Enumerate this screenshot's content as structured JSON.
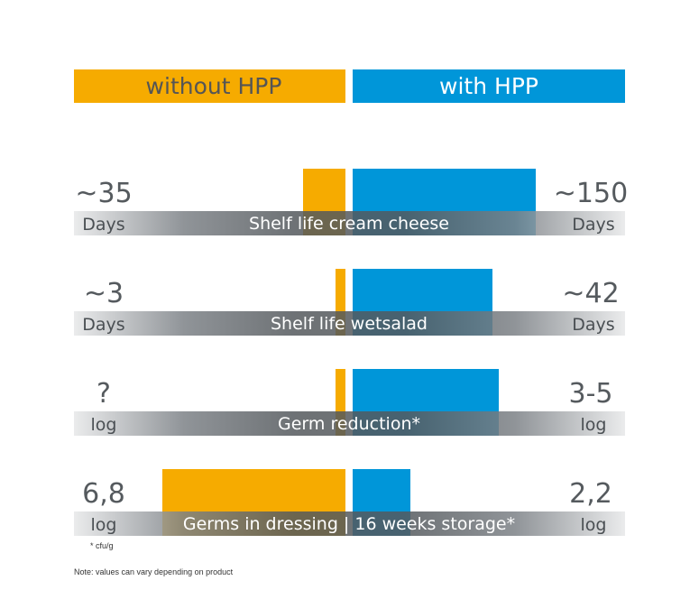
{
  "colors": {
    "without": "#f6ab00",
    "with": "#0096d9",
    "band_dark": "#54595d",
    "band_light": "#e7e8e9"
  },
  "chart_data": {
    "type": "bar",
    "legend": {
      "without": "without HPP",
      "with": "with HPP"
    },
    "rows": [
      {
        "label": "Shelf life cream cheese",
        "without_text": "~35",
        "with_text": "~150",
        "unit_left": "Days",
        "unit_right": "Days",
        "without_value": 35,
        "with_value": 150
      },
      {
        "label": "Shelf life wetsalad",
        "without_text": "~3",
        "with_text": "~42",
        "unit_left": "Days",
        "unit_right": "Days",
        "without_value": 3,
        "with_value": 42
      },
      {
        "label": "Germ reduction*",
        "without_text": "?",
        "with_text": "3-5",
        "unit_left": "log",
        "unit_right": "log",
        "without_value": null,
        "with_value": 5
      },
      {
        "label": "Germs in dressing | 16 weeks storage*",
        "without_text": "6,8",
        "with_text": "2,2",
        "unit_left": "log",
        "unit_right": "log",
        "without_value": 6.8,
        "with_value": 2.2
      }
    ]
  },
  "footnote": "* cfu/g",
  "note": "Note: values can vary depending on product"
}
